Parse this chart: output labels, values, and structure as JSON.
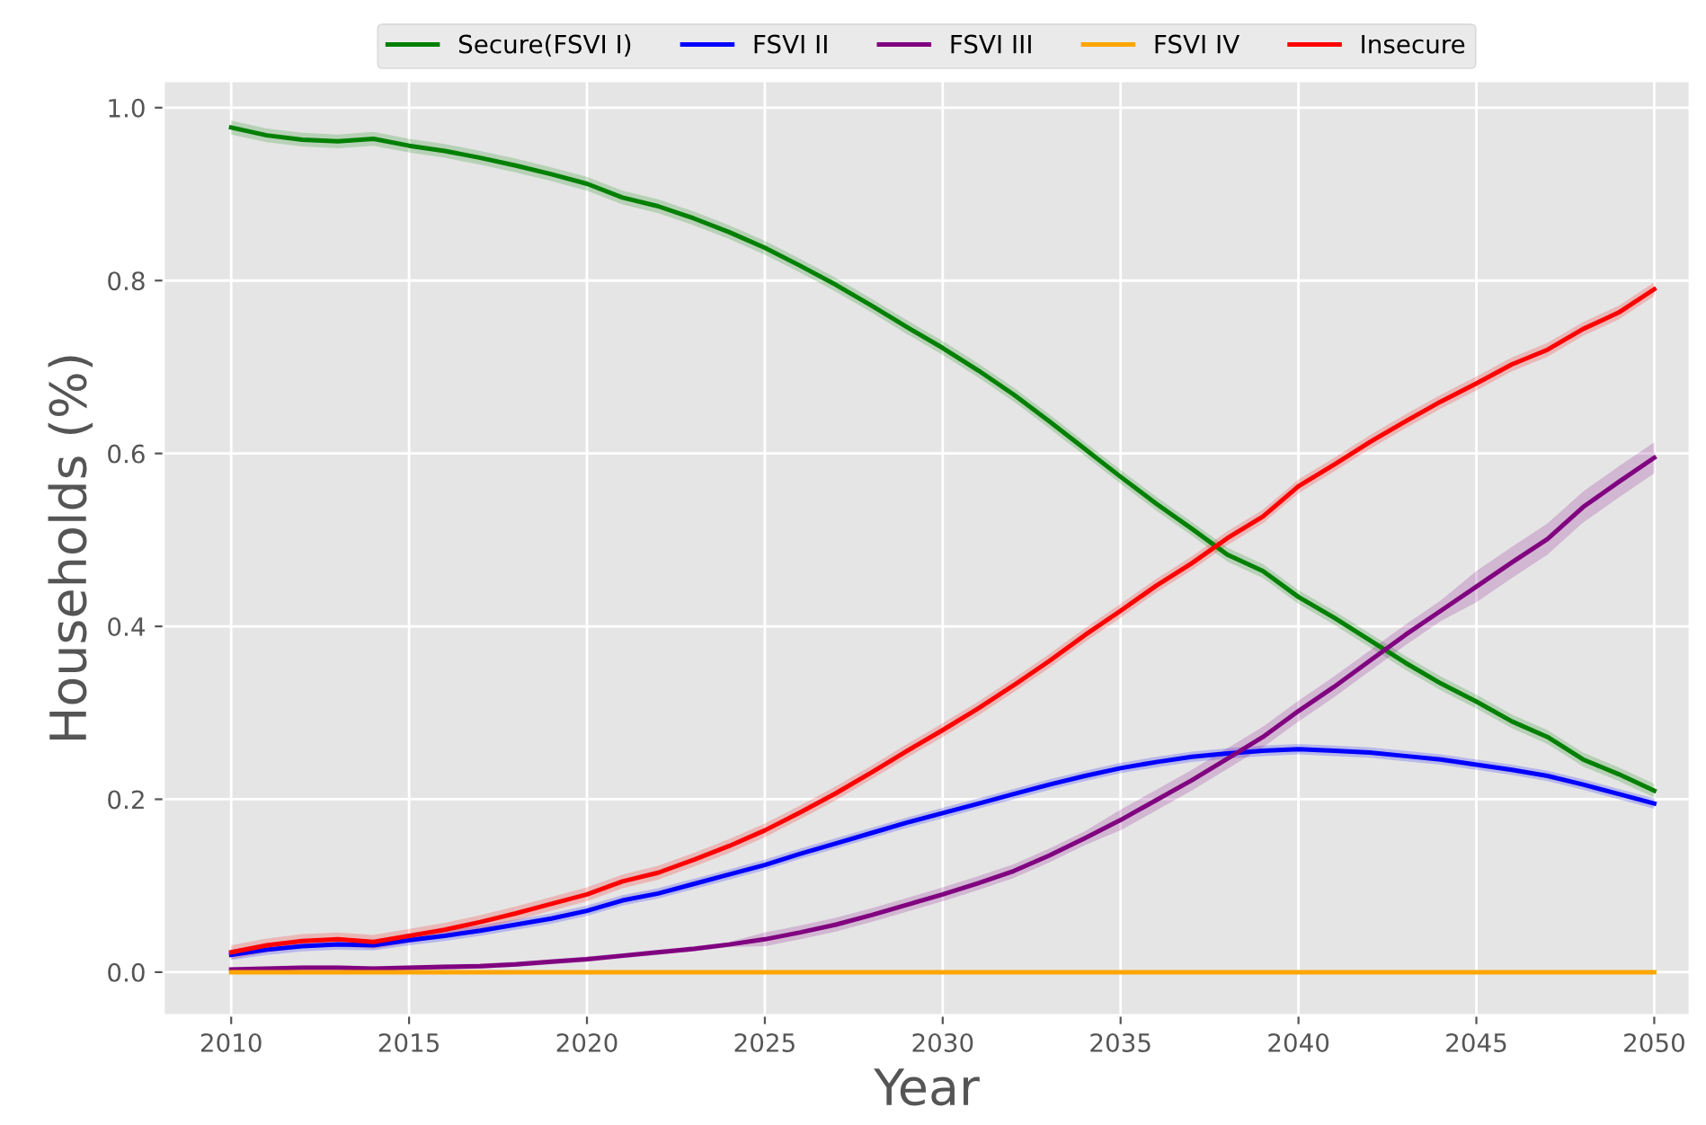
{
  "chart_data": {
    "type": "line",
    "xlabel": "Year",
    "ylabel": "Households (%)",
    "x": [
      2010,
      2011,
      2012,
      2013,
      2014,
      2015,
      2016,
      2017,
      2018,
      2019,
      2020,
      2021,
      2022,
      2023,
      2024,
      2025,
      2026,
      2027,
      2028,
      2029,
      2030,
      2031,
      2032,
      2033,
      2034,
      2035,
      2036,
      2037,
      2038,
      2039,
      2040,
      2041,
      2042,
      2043,
      2044,
      2045,
      2046,
      2047,
      2048,
      2049,
      2050
    ],
    "series": [
      {
        "name": "Secure(FSVI I)",
        "color": "#008000",
        "values": [
          0.977,
          0.968,
          0.963,
          0.961,
          0.964,
          0.956,
          0.95,
          0.942,
          0.933,
          0.923,
          0.912,
          0.896,
          0.886,
          0.872,
          0.856,
          0.838,
          0.817,
          0.795,
          0.771,
          0.746,
          0.722,
          0.696,
          0.668,
          0.637,
          0.605,
          0.573,
          0.542,
          0.513,
          0.483,
          0.464,
          0.434,
          0.41,
          0.384,
          0.358,
          0.334,
          0.313,
          0.29,
          0.272,
          0.246,
          0.229,
          0.21
        ],
        "lower": [
          0.969,
          0.96,
          0.955,
          0.953,
          0.956,
          0.948,
          0.942,
          0.934,
          0.925,
          0.915,
          0.904,
          0.888,
          0.878,
          0.864,
          0.848,
          0.83,
          0.809,
          0.787,
          0.763,
          0.738,
          0.714,
          0.688,
          0.66,
          0.629,
          0.597,
          0.565,
          0.534,
          0.505,
          0.475,
          0.456,
          0.426,
          0.402,
          0.376,
          0.35,
          0.326,
          0.305,
          0.282,
          0.264,
          0.238,
          0.221,
          0.202
        ],
        "upper": [
          0.985,
          0.976,
          0.971,
          0.969,
          0.972,
          0.964,
          0.958,
          0.95,
          0.941,
          0.931,
          0.92,
          0.904,
          0.894,
          0.88,
          0.864,
          0.846,
          0.825,
          0.803,
          0.779,
          0.754,
          0.73,
          0.704,
          0.676,
          0.645,
          0.613,
          0.581,
          0.55,
          0.521,
          0.491,
          0.472,
          0.442,
          0.418,
          0.392,
          0.366,
          0.342,
          0.321,
          0.298,
          0.28,
          0.254,
          0.237,
          0.218
        ]
      },
      {
        "name": "FSVI II",
        "color": "#0000ff",
        "values": [
          0.02,
          0.026,
          0.03,
          0.032,
          0.031,
          0.037,
          0.042,
          0.048,
          0.055,
          0.062,
          0.071,
          0.083,
          0.091,
          0.102,
          0.113,
          0.124,
          0.137,
          0.149,
          0.161,
          0.173,
          0.184,
          0.195,
          0.206,
          0.217,
          0.227,
          0.236,
          0.243,
          0.249,
          0.253,
          0.256,
          0.258,
          0.256,
          0.254,
          0.25,
          0.246,
          0.24,
          0.234,
          0.227,
          0.217,
          0.206,
          0.195
        ],
        "lower": [
          0.014,
          0.02,
          0.024,
          0.026,
          0.025,
          0.031,
          0.036,
          0.042,
          0.049,
          0.056,
          0.065,
          0.077,
          0.085,
          0.096,
          0.107,
          0.118,
          0.131,
          0.143,
          0.155,
          0.167,
          0.178,
          0.189,
          0.2,
          0.211,
          0.221,
          0.23,
          0.237,
          0.243,
          0.247,
          0.25,
          0.252,
          0.25,
          0.248,
          0.244,
          0.24,
          0.234,
          0.228,
          0.221,
          0.211,
          0.2,
          0.189
        ],
        "upper": [
          0.026,
          0.032,
          0.036,
          0.038,
          0.037,
          0.043,
          0.048,
          0.054,
          0.061,
          0.068,
          0.077,
          0.089,
          0.097,
          0.108,
          0.119,
          0.13,
          0.143,
          0.155,
          0.167,
          0.179,
          0.19,
          0.201,
          0.212,
          0.223,
          0.233,
          0.242,
          0.249,
          0.255,
          0.259,
          0.262,
          0.264,
          0.262,
          0.26,
          0.256,
          0.252,
          0.246,
          0.24,
          0.233,
          0.223,
          0.212,
          0.201
        ]
      },
      {
        "name": "FSVI III",
        "color": "#800080",
        "values": [
          0.003,
          0.004,
          0.005,
          0.005,
          0.004,
          0.005,
          0.006,
          0.007,
          0.009,
          0.012,
          0.015,
          0.019,
          0.023,
          0.027,
          0.032,
          0.038,
          0.046,
          0.055,
          0.066,
          0.078,
          0.09,
          0.103,
          0.117,
          0.135,
          0.155,
          0.176,
          0.199,
          0.222,
          0.247,
          0.272,
          0.302,
          0.33,
          0.36,
          0.39,
          0.418,
          0.446,
          0.474,
          0.501,
          0.538,
          0.567,
          0.595
        ],
        "lower": [
          0.0,
          0.001,
          0.002,
          0.002,
          0.001,
          0.002,
          0.003,
          0.004,
          0.006,
          0.009,
          0.012,
          0.016,
          0.02,
          0.024,
          0.029,
          0.03,
          0.038,
          0.047,
          0.058,
          0.07,
          0.082,
          0.095,
          0.109,
          0.127,
          0.147,
          0.164,
          0.187,
          0.21,
          0.235,
          0.26,
          0.29,
          0.318,
          0.348,
          0.378,
          0.406,
          0.428,
          0.456,
          0.483,
          0.52,
          0.549,
          0.577
        ],
        "upper": [
          0.006,
          0.007,
          0.008,
          0.008,
          0.007,
          0.008,
          0.009,
          0.01,
          0.012,
          0.015,
          0.018,
          0.022,
          0.026,
          0.03,
          0.035,
          0.046,
          0.054,
          0.063,
          0.074,
          0.086,
          0.098,
          0.111,
          0.125,
          0.143,
          0.163,
          0.188,
          0.211,
          0.234,
          0.259,
          0.284,
          0.314,
          0.342,
          0.372,
          0.402,
          0.43,
          0.464,
          0.492,
          0.519,
          0.556,
          0.585,
          0.613
        ]
      },
      {
        "name": "FSVI IV",
        "color": "#ffa500",
        "values": [
          0,
          0,
          0,
          0,
          0,
          0,
          0,
          0,
          0,
          0,
          0,
          0,
          0,
          0,
          0,
          0,
          0,
          0,
          0,
          0,
          0,
          0,
          0,
          0,
          0,
          0,
          0,
          0,
          0,
          0,
          0,
          0,
          0,
          0,
          0,
          0,
          0,
          0,
          0,
          0,
          0
        ]
      },
      {
        "name": "Insecure",
        "color": "#ff0000",
        "values": [
          0.023,
          0.031,
          0.036,
          0.038,
          0.035,
          0.042,
          0.049,
          0.058,
          0.068,
          0.079,
          0.09,
          0.105,
          0.115,
          0.13,
          0.146,
          0.164,
          0.185,
          0.207,
          0.231,
          0.256,
          0.28,
          0.305,
          0.332,
          0.36,
          0.39,
          0.418,
          0.447,
          0.473,
          0.502,
          0.527,
          0.562,
          0.587,
          0.613,
          0.637,
          0.66,
          0.681,
          0.703,
          0.72,
          0.744,
          0.763,
          0.79
        ],
        "lower": [
          0.015,
          0.023,
          0.028,
          0.03,
          0.027,
          0.034,
          0.041,
          0.05,
          0.06,
          0.071,
          0.082,
          0.097,
          0.107,
          0.122,
          0.138,
          0.156,
          0.177,
          0.199,
          0.223,
          0.248,
          0.272,
          0.297,
          0.324,
          0.352,
          0.382,
          0.41,
          0.439,
          0.465,
          0.494,
          0.519,
          0.554,
          0.579,
          0.605,
          0.629,
          0.652,
          0.673,
          0.695,
          0.712,
          0.736,
          0.755,
          0.782
        ],
        "upper": [
          0.031,
          0.039,
          0.044,
          0.046,
          0.043,
          0.05,
          0.057,
          0.066,
          0.076,
          0.087,
          0.098,
          0.113,
          0.123,
          0.138,
          0.154,
          0.172,
          0.193,
          0.215,
          0.239,
          0.264,
          0.288,
          0.313,
          0.34,
          0.368,
          0.398,
          0.426,
          0.455,
          0.481,
          0.51,
          0.535,
          0.57,
          0.595,
          0.621,
          0.645,
          0.668,
          0.689,
          0.711,
          0.728,
          0.752,
          0.771,
          0.798
        ]
      }
    ],
    "xlim": [
      2008.1,
      2051.0
    ],
    "ylim": [
      -0.05,
      1.031
    ],
    "xticks": [
      2010,
      2015,
      2020,
      2025,
      2030,
      2035,
      2040,
      2045,
      2050
    ],
    "yticks": [
      {
        "value": 0,
        "label": "0.0"
      },
      {
        "value": 0.2,
        "label": "0.2"
      },
      {
        "value": 0.4,
        "label": "0.4"
      },
      {
        "value": 0.6,
        "label": "0.6"
      },
      {
        "value": 0.8,
        "label": "0.8"
      },
      {
        "value": 1,
        "label": "1.0"
      }
    ],
    "grid": true,
    "legend": "top",
    "line_style": "solid"
  }
}
